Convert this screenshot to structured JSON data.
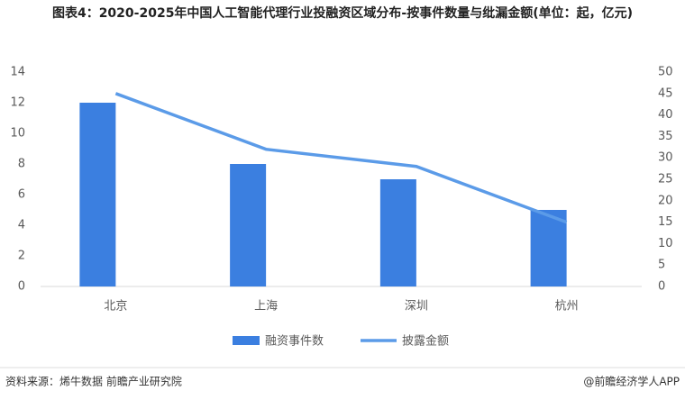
{
  "chart_data": {
    "type": "bar",
    "title": "图表4：2020-2025年中国人工智能代理行业投融资区域分布-按事件数量与纰漏金额(单位：起，亿元)",
    "categories": [
      "北京",
      "上海",
      "深圳",
      "杭州"
    ],
    "series": [
      {
        "name": "融资事件数",
        "type": "bar",
        "color": "#3b7fe0",
        "values": [
          12,
          8,
          7,
          5
        ]
      },
      {
        "name": "披露金额",
        "type": "line",
        "axis": "y2",
        "color": "#5b9be8",
        "values": [
          45,
          32,
          28,
          15
        ]
      }
    ],
    "ylim": [
      0,
      14
    ],
    "yticks": [
      0,
      2,
      4,
      6,
      8,
      10,
      12,
      14
    ],
    "y2lim": [
      0,
      50
    ],
    "y2ticks": [
      0,
      5,
      10,
      15,
      20,
      25,
      30,
      35,
      40,
      45,
      50
    ],
    "grid": false,
    "source": "资料来源：烯牛数据 前瞻产业研究院",
    "credit": "@前瞻经济学人APP"
  }
}
